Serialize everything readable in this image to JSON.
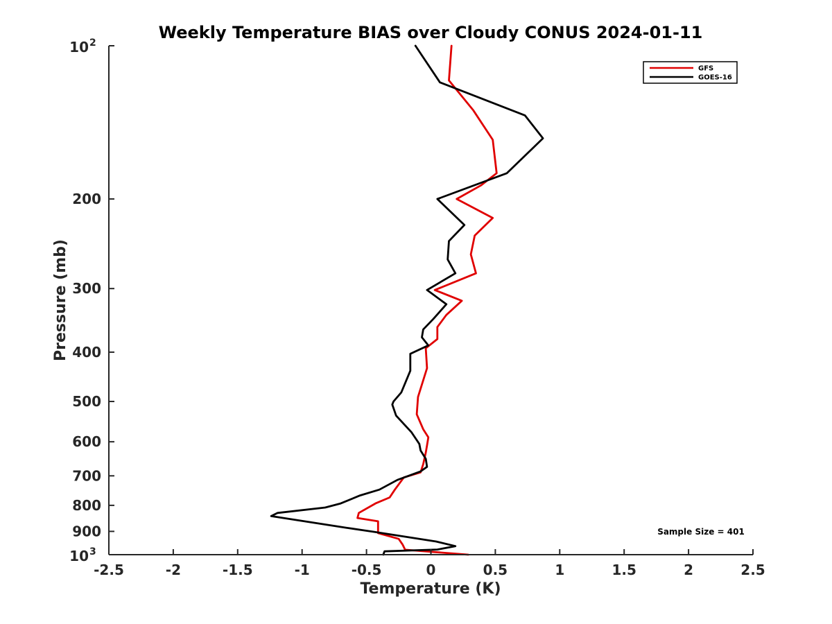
{
  "chart_data": {
    "type": "line",
    "title": "Weekly Temperature BIAS over Cloudy CONUS 2024-01-11",
    "xlabel": "Temperature (K)",
    "ylabel": "Pressure (mb)",
    "xlim": [
      -2.5,
      2.5
    ],
    "ylim": [
      100,
      1000
    ],
    "y_scale": "log",
    "y_reversed": true,
    "grid": false,
    "legend_position": "top-right",
    "x_ticks": [
      -2.5,
      -2,
      -1.5,
      -1,
      -0.5,
      0,
      0.5,
      1,
      1.5,
      2,
      2.5
    ],
    "x_tick_labels": [
      "-2.5",
      "-2",
      "-1.5",
      "-1",
      "-0.5",
      "0",
      "0.5",
      "1",
      "1.5",
      "2",
      "2.5"
    ],
    "y_ticks": [
      {
        "value": 100,
        "base": "10",
        "exp": "2"
      },
      {
        "value": 200,
        "label": "200"
      },
      {
        "value": 300,
        "label": "300"
      },
      {
        "value": 400,
        "label": "400"
      },
      {
        "value": 500,
        "label": "500"
      },
      {
        "value": 600,
        "label": "600"
      },
      {
        "value": 700,
        "label": "700"
      },
      {
        "value": 800,
        "label": "800"
      },
      {
        "value": 900,
        "label": "900"
      },
      {
        "value": 1000,
        "base": "10",
        "exp": "3"
      }
    ],
    "series": [
      {
        "name": "GFS",
        "color": "#e00000",
        "points": [
          [
            0.16,
            100
          ],
          [
            0.14,
            117
          ],
          [
            0.33,
            134
          ],
          [
            0.48,
            153
          ],
          [
            0.51,
            178
          ],
          [
            0.39,
            188
          ],
          [
            0.2,
            200
          ],
          [
            0.48,
            218
          ],
          [
            0.34,
            236
          ],
          [
            0.31,
            257
          ],
          [
            0.35,
            280
          ],
          [
            0.03,
            302
          ],
          [
            0.24,
            317
          ],
          [
            0.12,
            338
          ],
          [
            0.05,
            357
          ],
          [
            0.05,
            377
          ],
          [
            -0.04,
            393
          ],
          [
            -0.03,
            430
          ],
          [
            -0.1,
            490
          ],
          [
            -0.11,
            530
          ],
          [
            -0.06,
            567
          ],
          [
            -0.02,
            588
          ],
          [
            -0.03,
            610
          ],
          [
            -0.04,
            630
          ],
          [
            -0.06,
            664
          ],
          [
            -0.08,
            689
          ],
          [
            -0.21,
            705
          ],
          [
            -0.28,
            745
          ],
          [
            -0.32,
            772
          ],
          [
            -0.43,
            793
          ],
          [
            -0.56,
            828
          ],
          [
            -0.57,
            847
          ],
          [
            -0.41,
            860
          ],
          [
            -0.41,
            907
          ],
          [
            -0.25,
            931
          ],
          [
            -0.22,
            955
          ],
          [
            -0.2,
            978
          ],
          [
            0.29,
            1000
          ]
        ]
      },
      {
        "name": "GOES-16",
        "color": "#000000",
        "points": [
          [
            -0.12,
            100
          ],
          [
            0.07,
            118
          ],
          [
            0.73,
            137
          ],
          [
            0.87,
            152
          ],
          [
            0.59,
            178
          ],
          [
            0.05,
            200
          ],
          [
            0.26,
            225
          ],
          [
            0.14,
            242
          ],
          [
            0.13,
            263
          ],
          [
            0.19,
            280
          ],
          [
            -0.03,
            302
          ],
          [
            0.12,
            322
          ],
          [
            0.02,
            344
          ],
          [
            -0.06,
            361
          ],
          [
            -0.07,
            374
          ],
          [
            -0.02,
            388
          ],
          [
            -0.16,
            403
          ],
          [
            -0.16,
            435
          ],
          [
            -0.23,
            480
          ],
          [
            -0.29,
            500
          ],
          [
            -0.3,
            507
          ],
          [
            -0.27,
            533
          ],
          [
            -0.15,
            575
          ],
          [
            -0.09,
            606
          ],
          [
            -0.08,
            624
          ],
          [
            -0.04,
            648
          ],
          [
            -0.03,
            672
          ],
          [
            -0.08,
            686
          ],
          [
            -0.26,
            713
          ],
          [
            -0.4,
            745
          ],
          [
            -0.55,
            765
          ],
          [
            -0.7,
            793
          ],
          [
            -0.82,
            808
          ],
          [
            -1.19,
            828
          ],
          [
            -1.24,
            840
          ],
          [
            -0.66,
            885
          ],
          [
            -0.44,
            902
          ],
          [
            0.04,
            942
          ],
          [
            0.19,
            962
          ],
          [
            0.05,
            977
          ],
          [
            -0.36,
            985
          ],
          [
            -0.37,
            1000
          ]
        ]
      }
    ],
    "annotations": [
      {
        "text": "Sample Size = 401"
      }
    ]
  }
}
